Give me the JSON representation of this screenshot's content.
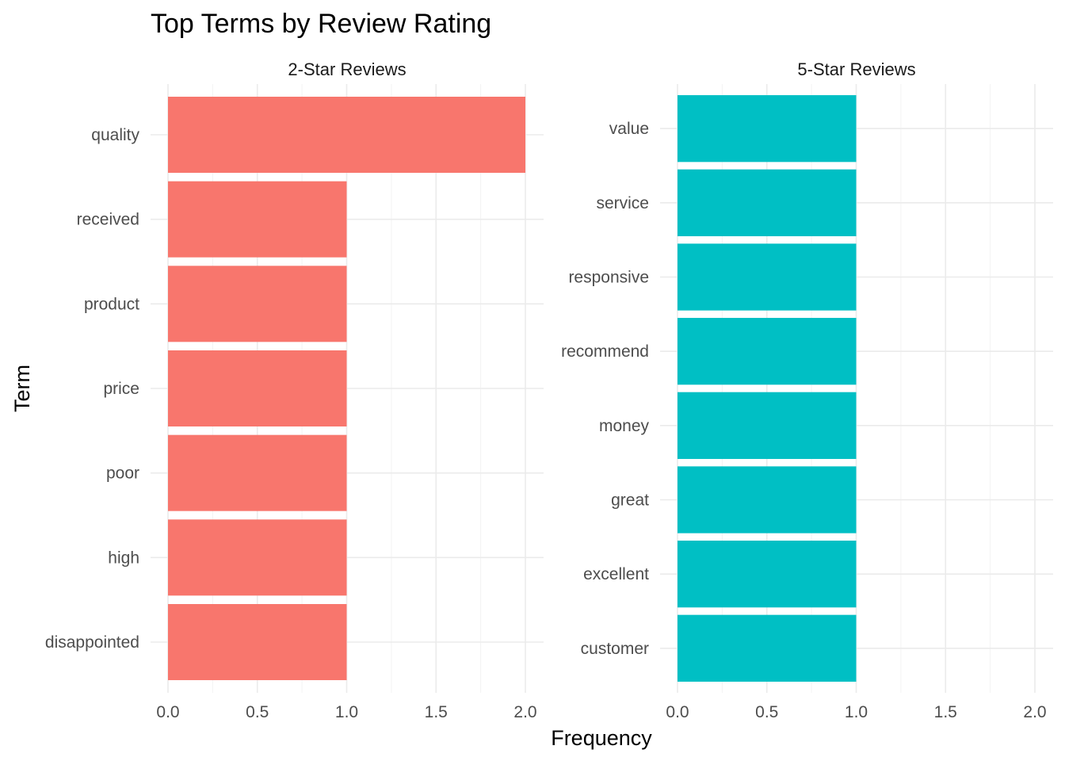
{
  "chart_data": {
    "type": "bar",
    "orientation": "horizontal",
    "title": "Top Terms by Review Rating",
    "xlabel": "Frequency",
    "ylabel": "Term",
    "xlim": [
      0,
      2
    ],
    "x_ticks": [
      "0.0",
      "0.5",
      "1.0",
      "1.5",
      "2.0"
    ],
    "grid": true,
    "legend": "none",
    "panels": [
      {
        "name": "2-Star Reviews",
        "color": "#F8766D",
        "categories": [
          "quality",
          "received",
          "product",
          "price",
          "poor",
          "high",
          "disappointed"
        ],
        "values": [
          2,
          1,
          1,
          1,
          1,
          1,
          1
        ]
      },
      {
        "name": "5-Star Reviews",
        "color": "#00BFC4",
        "categories": [
          "value",
          "service",
          "responsive",
          "recommend",
          "money",
          "great",
          "excellent",
          "customer"
        ],
        "values": [
          1,
          1,
          1,
          1,
          1,
          1,
          1,
          1
        ]
      }
    ]
  }
}
